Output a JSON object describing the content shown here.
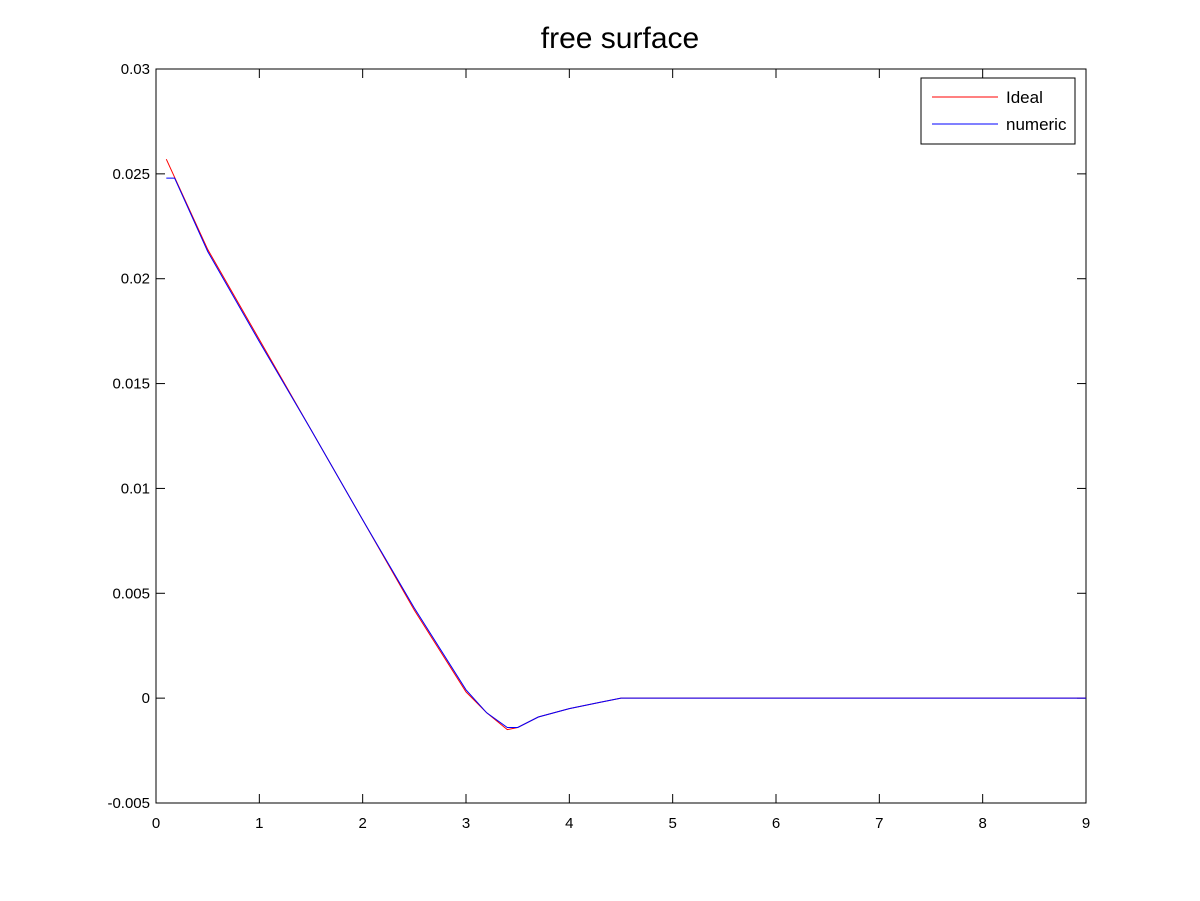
{
  "chart_data": {
    "type": "line",
    "title": "free surface",
    "xlabel": "",
    "ylabel": "",
    "xlim": [
      0,
      9
    ],
    "ylim": [
      -0.005,
      0.03
    ],
    "xticks": [
      0,
      1,
      2,
      3,
      4,
      5,
      6,
      7,
      8,
      9
    ],
    "xtick_labels": [
      "0",
      "1",
      "2",
      "3",
      "4",
      "5",
      "6",
      "7",
      "8",
      "9"
    ],
    "yticks": [
      -0.005,
      0,
      0.005,
      0.01,
      0.015,
      0.02,
      0.025,
      0.03
    ],
    "ytick_labels": [
      "-0.005",
      "0",
      "0.005",
      "0.01",
      "0.015",
      "0.02",
      "0.025",
      "0.03"
    ],
    "grid": false,
    "legend": "top-right",
    "series": [
      {
        "name": "Ideal",
        "color": "#ff0000",
        "x": [
          0.1,
          0.5,
          1.0,
          1.5,
          2.0,
          2.5,
          3.0,
          3.2,
          3.4,
          3.5,
          3.7,
          4.0,
          4.3,
          4.5,
          5.0,
          6.0,
          7.0,
          8.0,
          9.0
        ],
        "y": [
          0.0257,
          0.0214,
          0.0171,
          0.0128,
          0.0085,
          0.0042,
          0.0003,
          -0.0007,
          -0.0015,
          -0.0014,
          -0.0009,
          -0.0005,
          -0.0002,
          0.0,
          0.0,
          0.0,
          0.0,
          0.0,
          0.0
        ]
      },
      {
        "name": "numeric",
        "color": "#0000ff",
        "x": [
          0.1,
          0.18,
          0.5,
          1.0,
          1.5,
          2.0,
          2.5,
          3.0,
          3.2,
          3.4,
          3.5,
          3.7,
          4.0,
          4.3,
          4.5,
          5.0,
          6.0,
          7.0,
          8.0,
          9.0
        ],
        "y": [
          0.0248,
          0.0248,
          0.0213,
          0.017,
          0.0128,
          0.0085,
          0.0043,
          0.0004,
          -0.0007,
          -0.0014,
          -0.0014,
          -0.0009,
          -0.0005,
          -0.0002,
          0.0,
          0.0,
          0.0,
          0.0,
          0.0,
          0.0
        ]
      }
    ]
  }
}
